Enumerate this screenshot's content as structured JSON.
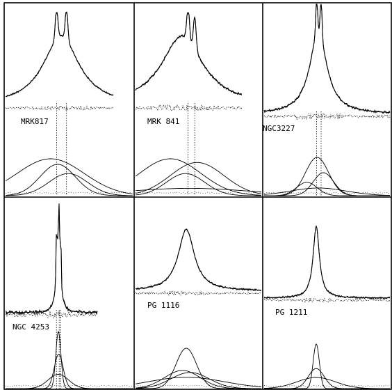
{
  "chart_data": {
    "type": "line",
    "grid": false,
    "legend": "none",
    "layout": "3x2 panel grid; each panel shows an observed emission-line profile with the model fit overlaid, a dotted residual trace below it, and the component Gaussians decomposing the profile at the bottom",
    "panels": [
      {
        "label": "MRK817",
        "profile": {
          "center": 0.0,
          "broad_fwhm": 2.6,
          "narrow_peaks": [
            -0.3,
            0.35
          ],
          "residual": "low"
        },
        "components": [
          {
            "center": -0.6,
            "width": 1.9,
            "amplitude": 1.0
          },
          {
            "center": -0.2,
            "width": 1.0,
            "amplitude": 0.85
          },
          {
            "center": 0.4,
            "width": 1.1,
            "amplitude": 0.6
          }
        ]
      },
      {
        "label": "MRK 841",
        "profile": {
          "center": -0.2,
          "broad_fwhm": 2.8,
          "narrow_peaks": [
            0.15,
            0.55
          ],
          "residual": "medium"
        },
        "components": [
          {
            "center": -0.8,
            "width": 1.6,
            "amplitude": 1.0
          },
          {
            "center": 0.0,
            "width": 1.0,
            "amplitude": 0.6
          },
          {
            "center": 0.6,
            "width": 1.4,
            "amplitude": 0.9
          },
          {
            "center": 0.2,
            "width": 3.2,
            "amplitude": 0.2
          }
        ]
      },
      {
        "label": "NGC3227",
        "profile": {
          "center": 0.0,
          "broad_fwhm": 1.7,
          "narrow_peaks": [
            -0.15,
            0.25
          ],
          "residual": "medium"
        },
        "components": [
          {
            "center": -0.9,
            "width": 0.8,
            "amplitude": 0.35
          },
          {
            "center": -0.1,
            "width": 0.9,
            "amplitude": 1.0
          },
          {
            "center": 0.4,
            "width": 0.8,
            "amplitude": 0.6
          },
          {
            "center": 0.0,
            "width": 2.2,
            "amplitude": 0.2
          }
        ]
      },
      {
        "label": "NGC 4253",
        "profile": {
          "center": 0.0,
          "broad_fwhm": 0.7,
          "narrow_peaks": [
            -0.35,
            0.15,
            0.45
          ],
          "residual": "high"
        },
        "components": [
          {
            "center": 0.0,
            "width": 0.4,
            "amplitude": 1.0
          },
          {
            "center": 0.05,
            "width": 0.7,
            "amplitude": 0.6
          },
          {
            "center": 0.0,
            "width": 1.6,
            "amplitude": 0.25
          }
        ]
      },
      {
        "label": "PG 1116",
        "profile": {
          "center": 0.0,
          "broad_fwhm": 1.6,
          "narrow_peaks": [],
          "residual": "low"
        },
        "components": [
          {
            "center": 0.0,
            "width": 0.8,
            "amplitude": 1.0
          },
          {
            "center": -0.3,
            "width": 1.4,
            "amplitude": 0.45
          },
          {
            "center": 0.3,
            "width": 1.5,
            "amplitude": 0.4
          },
          {
            "center": 0.0,
            "width": 3.0,
            "amplitude": 0.28
          }
        ]
      },
      {
        "label": "PG 1211",
        "profile": {
          "center": 0.0,
          "broad_fwhm": 0.9,
          "narrow_peaks": [],
          "residual": "low"
        },
        "components": [
          {
            "center": 0.0,
            "width": 0.35,
            "amplitude": 1.0
          },
          {
            "center": 0.0,
            "width": 0.9,
            "amplitude": 0.45
          },
          {
            "center": 0.0,
            "width": 2.2,
            "amplitude": 0.25
          }
        ]
      }
    ]
  }
}
